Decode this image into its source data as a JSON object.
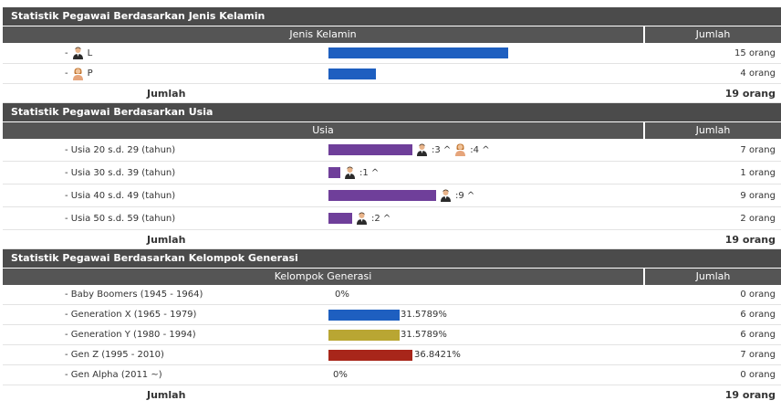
{
  "gender": {
    "title": "Statistik Pegawai Berdasarkan Jenis Kelamin",
    "col1": "Jenis Kelamin",
    "col2": "Jumlah",
    "rows": [
      {
        "prefix": "-",
        "label": "L",
        "icon": "male-person-icon",
        "bar_color": "#1e5fc0",
        "bar_fraction": 1.0,
        "count": "15 orang"
      },
      {
        "prefix": "-",
        "label": "P",
        "icon": "female-person-icon",
        "bar_color": "#1e5fc0",
        "bar_fraction": 0.267,
        "count": "4 orang"
      }
    ],
    "total_label": "Jumlah",
    "total": "19 orang"
  },
  "age": {
    "title": "Statistik Pegawai Berdasarkan Usia",
    "col1": "Usia",
    "col2": "Jumlah",
    "bar_color": "#6f3f9a",
    "rows": [
      {
        "label": "- Usia 20 s.d. 29 (tahun)",
        "bar_fraction": 0.778,
        "male": ":3 ^",
        "female": ":4 ^",
        "count": "7 orang"
      },
      {
        "label": "- Usia 30 s.d. 39 (tahun)",
        "bar_fraction": 0.111,
        "male": ":1 ^",
        "female": null,
        "count": "1 orang"
      },
      {
        "label": "- Usia 40 s.d. 49 (tahun)",
        "bar_fraction": 1.0,
        "male": ":9 ^",
        "female": null,
        "count": "9 orang"
      },
      {
        "label": "- Usia 50 s.d. 59 (tahun)",
        "bar_fraction": 0.222,
        "male": ":2 ^",
        "female": null,
        "count": "2 orang"
      }
    ],
    "total_label": "Jumlah",
    "total": "19 orang"
  },
  "generation": {
    "title": "Statistik Pegawai Berdasarkan Kelompok Generasi",
    "col1": "Kelompok Generasi",
    "col2": "Jumlah",
    "rows": [
      {
        "label": "- Baby Boomers (1945 - 1964)",
        "bar_color": "#1e5fc0",
        "bar_fraction": 0,
        "pct": "0%",
        "count": "0 orang"
      },
      {
        "label": "- Generation X (1965 - 1979)",
        "bar_color": "#1e5fc0",
        "bar_fraction": 0.857,
        "pct": "31.5789%",
        "count": "6 orang"
      },
      {
        "label": "- Generation Y (1980 - 1994)",
        "bar_color": "#b9a633",
        "bar_fraction": 0.857,
        "pct": "31.5789%",
        "count": "6 orang"
      },
      {
        "label": "- Gen Z (1995 - 2010)",
        "bar_color": "#a8261a",
        "bar_fraction": 1.0,
        "pct": "36.8421%",
        "count": "7 orang"
      },
      {
        "label": "- Gen Alpha (2011 ~)",
        "bar_color": "#1e5fc0",
        "bar_fraction": 0,
        "pct": "0%",
        "count": "0 orang"
      }
    ],
    "total_label": "Jumlah",
    "total": "19 orang"
  }
}
